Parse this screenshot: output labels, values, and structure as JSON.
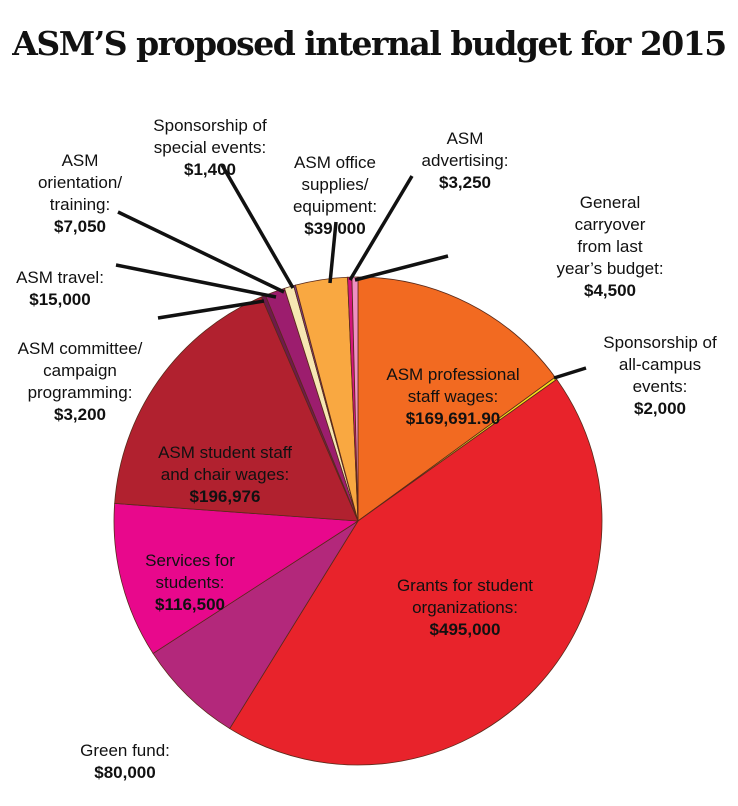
{
  "chart_data": {
    "type": "pie",
    "title": "ASM’S proposed internal budget for 2015",
    "start_angle": "12 o'clock",
    "direction": "clockwise",
    "slices": [
      {
        "label": "ASM professional\nstaff wages:",
        "value_label": "$169,691.90",
        "value": 169691.9,
        "color": "#f26a21"
      },
      {
        "label": "Sponsorship of\nall-campus\nevents:",
        "value_label": "$2,000",
        "value": 2000,
        "color": "#f5e11c"
      },
      {
        "label": "Grants for student\norganizations:",
        "value_label": "$495,000",
        "value": 495000,
        "color": "#e8232b"
      },
      {
        "label": "Green fund:",
        "value_label": "$80,000",
        "value": 80000,
        "color": "#b3287b"
      },
      {
        "label": "Services for\nstudents:",
        "value_label": "$116,500",
        "value": 116500,
        "color": "#e8088c"
      },
      {
        "label": "ASM student staff\nand chair wages:",
        "value_label": "$196,976",
        "value": 196976,
        "color": "#b1212f"
      },
      {
        "label": "ASM committee/\ncampaign\nprogramming:",
        "value_label": "$3,200",
        "value": 3200,
        "color": "#6e1a4c"
      },
      {
        "label": "ASM travel:",
        "value_label": "$15,000",
        "value": 15000,
        "color": "#9c1d6e"
      },
      {
        "label": "ASM\norientation/\ntraining:",
        "value_label": "$7,050",
        "value": 7050,
        "color": "#f6e7b3"
      },
      {
        "label": "Sponsorship of\nspecial events:",
        "value_label": "$1,400",
        "value": 1400,
        "color": "#7e3f8d"
      },
      {
        "label": "ASM office\nsupplies/\nequipment:",
        "value_label": "$39,000",
        "value": 39000,
        "color": "#f9a841"
      },
      {
        "label": "ASM\nadvertising:",
        "value_label": "$3,250",
        "value": 3250,
        "color": "#d4157c"
      },
      {
        "label": "General\ncarryover\nfrom last\nyear’s budget:",
        "value_label": "$4,500",
        "value": 4500,
        "color": "#ef8fc2"
      }
    ]
  }
}
